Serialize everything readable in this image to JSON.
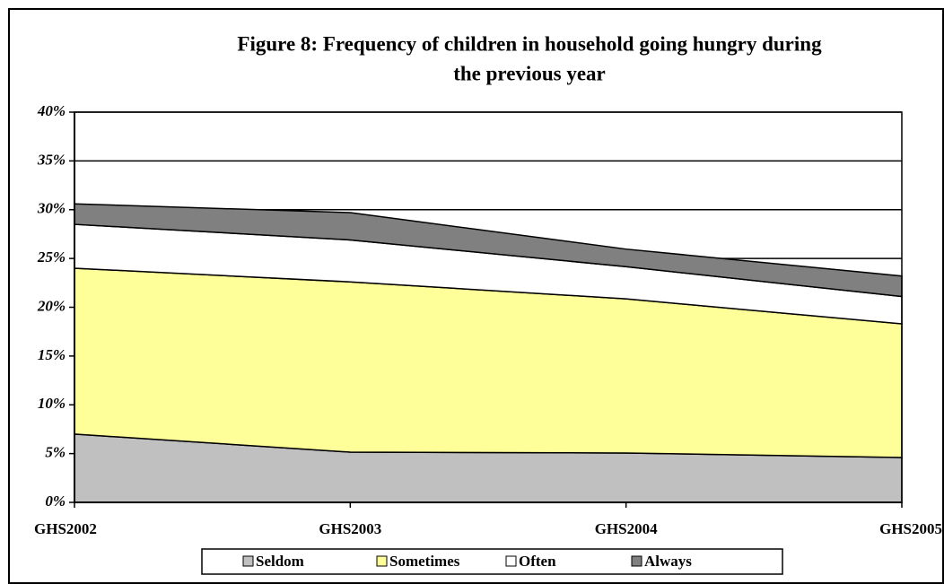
{
  "chart_data": {
    "type": "stacked_area",
    "title": "Figure 8: Frequency of children in household going hungry during",
    "subtitle": "the previous year",
    "categories": [
      "GHS2002",
      "GHS2003",
      "GHS2004",
      "GHS2005"
    ],
    "series": [
      {
        "name": "Seldom",
        "color": "#c0c0c0",
        "values": [
          7.0,
          5.15,
          5.06,
          4.6
        ]
      },
      {
        "name": "Sometimes",
        "color": "#ffff99",
        "values": [
          17.0,
          17.45,
          15.8,
          13.7
        ]
      },
      {
        "name": "Often",
        "color": "#ffffff",
        "values": [
          4.5,
          4.3,
          3.3,
          2.8
        ]
      },
      {
        "name": "Always",
        "color": "#808080",
        "values": [
          2.1,
          2.8,
          1.8,
          2.1
        ]
      }
    ],
    "ylim": [
      0,
      40
    ],
    "yticks": [
      {
        "value": 0,
        "label": "0%"
      },
      {
        "value": 5,
        "label": "5%"
      },
      {
        "value": 10,
        "label": "10%"
      },
      {
        "value": 15,
        "label": "15%"
      },
      {
        "value": 20,
        "label": "20%"
      },
      {
        "value": 25,
        "label": "25%"
      },
      {
        "value": 30,
        "label": "30%"
      },
      {
        "value": 35,
        "label": "35%"
      },
      {
        "value": 40,
        "label": "40%"
      }
    ],
    "grid": true
  }
}
